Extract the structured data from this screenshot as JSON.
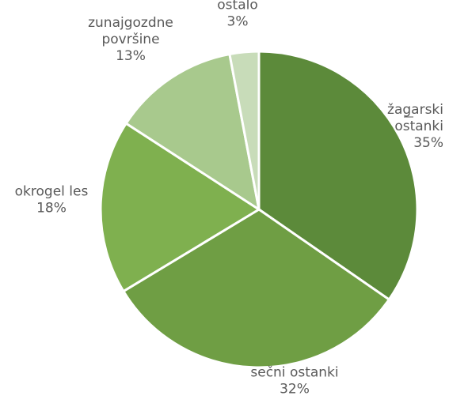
{
  "chart_data": {
    "type": "pie",
    "slices": [
      {
        "label": "žagarski ostanki",
        "value": 35,
        "value_label": "35%",
        "color": "#5c8a3a"
      },
      {
        "label": "sečni ostanki",
        "value": 32,
        "value_label": "32%",
        "color": "#6f9e44"
      },
      {
        "label": "okrogel les",
        "value": 18,
        "value_label": "18%",
        "color": "#7fb04f"
      },
      {
        "label": "zunajgozdne površine",
        "value": 13,
        "value_label": "13%",
        "color": "#a8c98d"
      },
      {
        "label": "ostalo",
        "value": 3,
        "value_label": "3%",
        "color": "#c8dcb9"
      }
    ],
    "label_lines": [
      [
        "žagarski",
        "ostanki",
        "35%"
      ],
      [
        "sečni ostanki",
        "32%"
      ],
      [
        "okrogel les",
        "18%"
      ],
      [
        "zunajgozdne",
        "površine",
        "13%"
      ],
      [
        "ostalo",
        "3%"
      ]
    ],
    "start": "12 o'clock",
    "direction": "clockwise",
    "legend": "none"
  }
}
